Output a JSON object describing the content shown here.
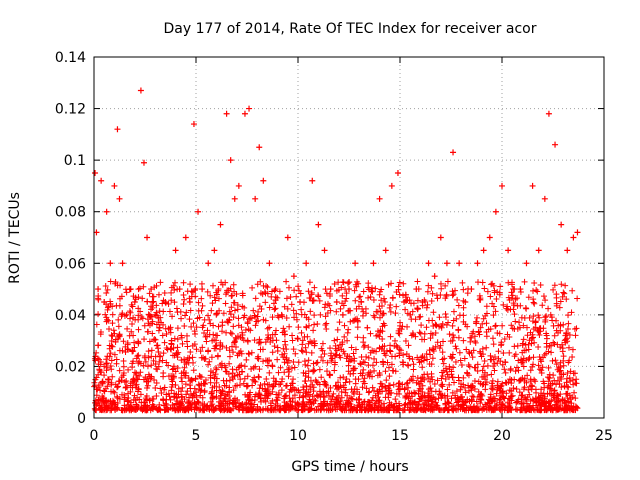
{
  "chart_data": {
    "type": "scatter",
    "title": "Day 177 of 2014, Rate Of TEC Index for receiver acor",
    "xlabel": "GPS time / hours",
    "ylabel": "ROTI / TECUs",
    "xlim": [
      0,
      25
    ],
    "ylim": [
      0,
      0.14
    ],
    "xticks": [
      0,
      5,
      10,
      15,
      20,
      25
    ],
    "yticks": [
      0,
      0.02,
      0.04,
      0.06,
      0.08,
      0.1,
      0.12,
      0.14
    ],
    "xtick_labels": [
      "0",
      "5",
      "10",
      "15",
      "20",
      "25"
    ],
    "ytick_labels": [
      "0",
      "0.02",
      "0.04",
      "0.06",
      "0.08",
      "0.1",
      "0.12",
      "0.14"
    ],
    "grid": true,
    "marker": "+",
    "colors": {
      "points": "#ff0000",
      "grid": "#a0a0a0",
      "axes": "#000000"
    },
    "series": [
      {
        "x": [
          0.05,
          0.12,
          0.2,
          0.35,
          0.5,
          0.62,
          0.8,
          1.0,
          1.15,
          1.25,
          1.4,
          1.6,
          1.8,
          2.0,
          2.3,
          2.45,
          2.6,
          2.8,
          3.0,
          3.2,
          3.5,
          3.8,
          4.0,
          4.2,
          4.5,
          4.7,
          4.9,
          5.1,
          5.3,
          5.6,
          5.9,
          6.2,
          6.5,
          6.7,
          6.9,
          7.1,
          7.4,
          7.6,
          7.9,
          8.1,
          8.3,
          8.6,
          8.9,
          9.2,
          9.5,
          9.8,
          10.1,
          10.4,
          10.7,
          11.0,
          11.3,
          11.6,
          11.9,
          12.2,
          12.5,
          12.8,
          13.1,
          13.4,
          13.7,
          14.0,
          14.3,
          14.6,
          14.9,
          15.2,
          15.5,
          15.8,
          16.1,
          16.4,
          16.7,
          17.0,
          17.3,
          17.6,
          17.9,
          18.2,
          18.5,
          18.8,
          19.1,
          19.4,
          19.7,
          20.0,
          20.3,
          20.6,
          20.9,
          21.2,
          21.5,
          21.8,
          22.1,
          22.3,
          22.6,
          22.9,
          23.2,
          23.5,
          23.7
        ],
        "y": [
          0.095,
          0.072,
          0.05,
          0.092,
          0.045,
          0.08,
          0.06,
          0.09,
          0.112,
          0.085,
          0.06,
          0.04,
          0.05,
          0.045,
          0.127,
          0.099,
          0.07,
          0.05,
          0.04,
          0.035,
          0.045,
          0.03,
          0.065,
          0.05,
          0.07,
          0.045,
          0.114,
          0.08,
          0.05,
          0.06,
          0.065,
          0.075,
          0.118,
          0.1,
          0.085,
          0.09,
          0.118,
          0.12,
          0.085,
          0.105,
          0.092,
          0.06,
          0.05,
          0.04,
          0.07,
          0.055,
          0.045,
          0.06,
          0.092,
          0.075,
          0.065,
          0.05,
          0.045,
          0.04,
          0.05,
          0.06,
          0.045,
          0.035,
          0.06,
          0.085,
          0.065,
          0.09,
          0.095,
          0.045,
          0.04,
          0.05,
          0.045,
          0.06,
          0.055,
          0.07,
          0.06,
          0.103,
          0.06,
          0.045,
          0.05,
          0.06,
          0.065,
          0.07,
          0.08,
          0.09,
          0.065,
          0.05,
          0.05,
          0.06,
          0.09,
          0.065,
          0.085,
          0.118,
          0.106,
          0.075,
          0.065,
          0.07,
          0.072
        ]
      }
    ]
  }
}
